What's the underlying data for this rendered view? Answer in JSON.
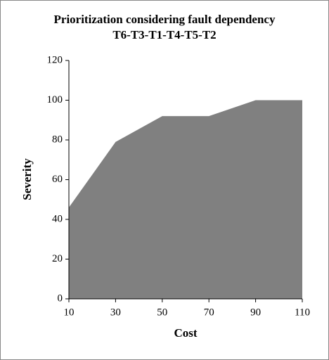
{
  "chart_data": {
    "type": "area",
    "title": "Prioritization considering fault dependency",
    "subtitle": "T6-T3-T1-T4-T5-T2",
    "x_label": "Cost",
    "y_label": "Severity",
    "x": [
      10,
      30,
      50,
      70,
      90,
      110
    ],
    "values": [
      46,
      79,
      92,
      92,
      100,
      100
    ],
    "color": "#808080",
    "xlim": [
      10,
      110
    ],
    "xticks": [
      10,
      30,
      50,
      70,
      90,
      110
    ],
    "ylim": [
      0,
      120
    ],
    "yticks": [
      0,
      20,
      40,
      60,
      80,
      100,
      120
    ],
    "grid": false
  }
}
